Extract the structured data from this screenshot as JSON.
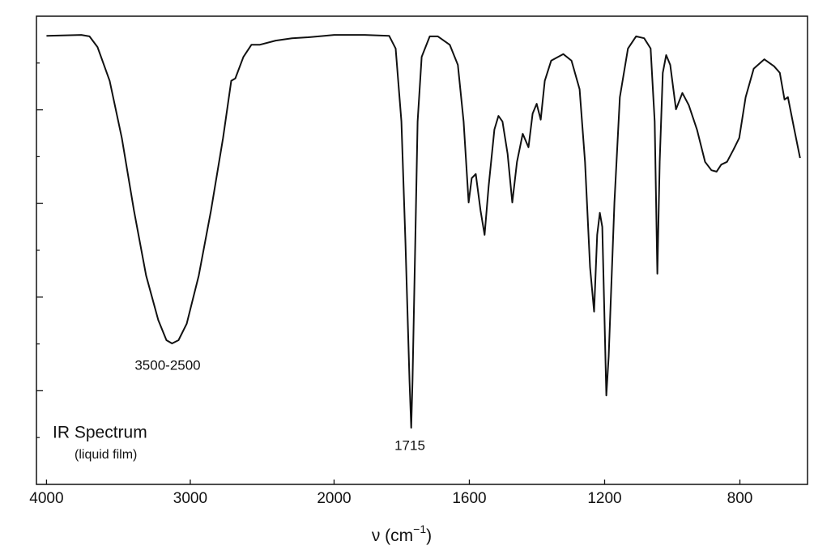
{
  "chart_data": {
    "type": "line",
    "title": "IR Spectrum",
    "subtitle": "(liquid film)",
    "xlabel": [
      "ν  (cm",
      "−1",
      ")"
    ],
    "annotations": [
      "3500-2500",
      "1715"
    ],
    "x_scale_break": 2000,
    "xlim": [
      4070,
      600
    ],
    "xticks": [
      4000,
      3000,
      2000,
      1600,
      1200,
      800
    ],
    "ylim": [
      0,
      100
    ],
    "yticks": [
      20,
      40,
      60,
      80
    ],
    "yminor_ticks": [
      10,
      30,
      50,
      70,
      90
    ],
    "ytick_labels": false,
    "color": "#111111",
    "series": [
      {
        "x": [
          4000,
          3758,
          3701,
          3645,
          3561,
          3476,
          3392,
          3307,
          3223,
          3166,
          3127,
          3082,
          3025,
          2941,
          2856,
          2772,
          2715,
          2687,
          2631,
          2575,
          2518,
          2406,
          2293,
          2180,
          2068,
          2000,
          1909,
          1837,
          1818,
          1801,
          1789,
          1777,
          1772,
          1768,
          1760,
          1753,
          1741,
          1717,
          1693,
          1658,
          1634,
          1617,
          1602,
          1593,
          1581,
          1567,
          1555,
          1543,
          1526,
          1514,
          1502,
          1487,
          1473,
          1459,
          1442,
          1425,
          1413,
          1401,
          1389,
          1377,
          1358,
          1322,
          1298,
          1274,
          1258,
          1243,
          1231,
          1222,
          1214,
          1207,
          1200,
          1195,
          1188,
          1171,
          1155,
          1131,
          1107,
          1083,
          1064,
          1052,
          1044,
          1037,
          1028,
          1018,
          1006,
          989,
          970,
          951,
          927,
          903,
          884,
          869,
          855,
          838,
          819,
          802,
          783,
          759,
          728,
          699,
          682,
          668,
          658,
          639,
          622
        ],
        "values": [
          95.8,
          96.0,
          95.7,
          93.4,
          86.2,
          74.0,
          58.5,
          44.6,
          35.1,
          30.8,
          30.1,
          30.8,
          34.3,
          44.6,
          58.5,
          74.0,
          86.2,
          86.7,
          91.3,
          93.9,
          93.9,
          94.8,
          95.3,
          95.5,
          95.8,
          96.0,
          96.0,
          95.8,
          93.1,
          77.5,
          51.6,
          22.1,
          12.1,
          22.1,
          51.6,
          77.5,
          91.3,
          95.7,
          95.7,
          93.9,
          89.6,
          77.5,
          60.2,
          65.4,
          66.3,
          58.5,
          53.3,
          63.7,
          75.8,
          78.7,
          77.5,
          70.6,
          60.2,
          68.9,
          74.9,
          72.0,
          79.2,
          81.3,
          77.9,
          86.2,
          90.5,
          91.9,
          90.5,
          84.4,
          68.9,
          46.4,
          36.9,
          53.3,
          58.0,
          55.0,
          34.3,
          19.0,
          27.3,
          60.2,
          82.7,
          93.1,
          95.7,
          95.3,
          93.1,
          77.5,
          45.0,
          68.9,
          87.9,
          91.7,
          89.6,
          80.1,
          83.6,
          81.0,
          75.8,
          68.9,
          67.1,
          66.8,
          68.3,
          68.9,
          71.5,
          74.0,
          82.7,
          88.8,
          90.8,
          89.3,
          87.9,
          82.2,
          82.7,
          75.8,
          69.7
        ]
      }
    ]
  }
}
